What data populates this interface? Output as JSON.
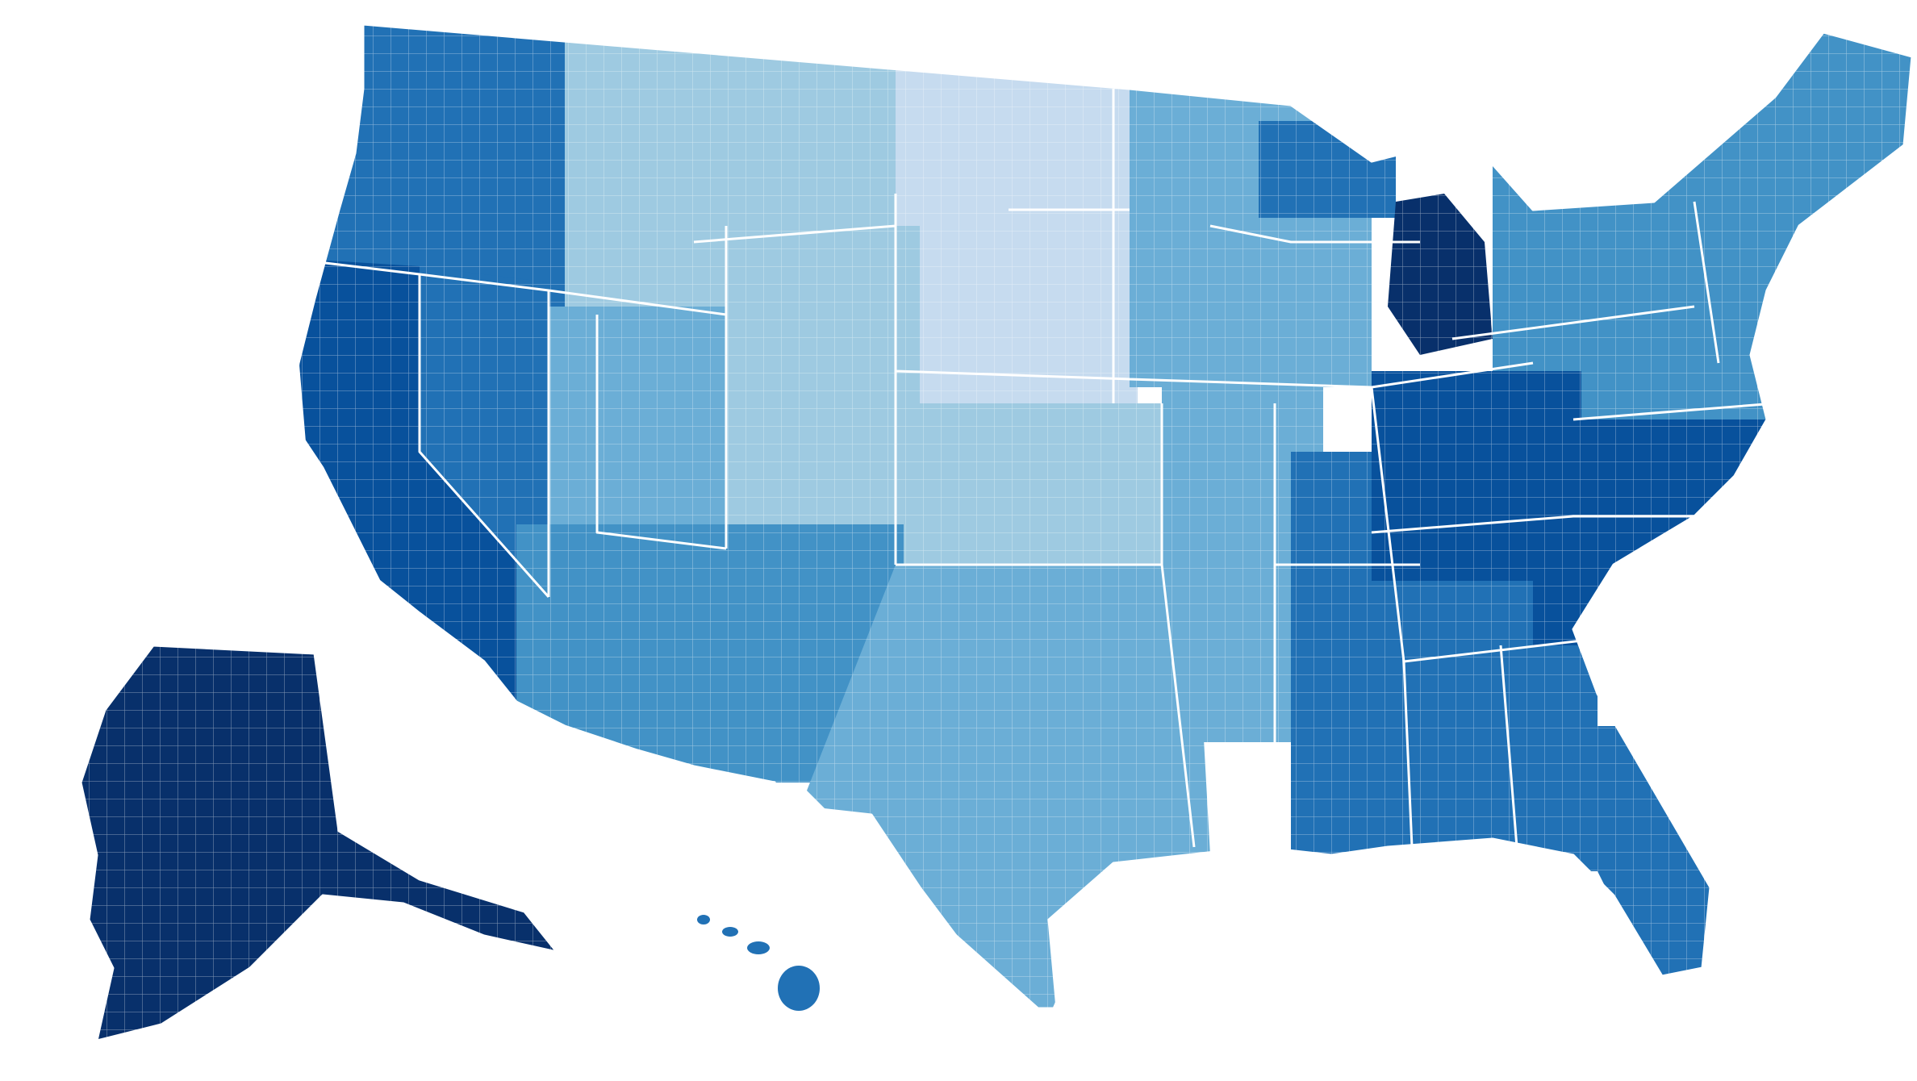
{
  "map": {
    "kind": "us-county-choropleth",
    "color_scale": [
      "#dbe6f6",
      "#c6dbef",
      "#9ecae1",
      "#6baed6",
      "#4292c6",
      "#2171b5",
      "#08519c",
      "#08306b"
    ],
    "background": "#ffffff",
    "border_color": "#ffffff",
    "regions": [
      {
        "id": "pacific-northwest",
        "level": 5
      },
      {
        "id": "northern-rockies",
        "level": 2
      },
      {
        "id": "northern-plains",
        "level": 1
      },
      {
        "id": "upper-midwest",
        "level": 3
      },
      {
        "id": "great-lakes",
        "level": 5
      },
      {
        "id": "michigan-lower",
        "level": 7
      },
      {
        "id": "northeast",
        "level": 4
      },
      {
        "id": "new-england",
        "level": 4
      },
      {
        "id": "california",
        "level": 6
      },
      {
        "id": "nevada",
        "level": 5
      },
      {
        "id": "great-basin",
        "level": 3
      },
      {
        "id": "colorado-plateau",
        "level": 2
      },
      {
        "id": "southwest",
        "level": 4
      },
      {
        "id": "southern-plains",
        "level": 2
      },
      {
        "id": "texas",
        "level": 3
      },
      {
        "id": "ozarks",
        "level": 3
      },
      {
        "id": "mississippi-delta",
        "level": 5
      },
      {
        "id": "appalachia",
        "level": 6
      },
      {
        "id": "southeast",
        "level": 5
      },
      {
        "id": "carolinas",
        "level": 6
      },
      {
        "id": "florida",
        "level": 5
      },
      {
        "id": "alaska",
        "level": 7
      },
      {
        "id": "hawaii",
        "level": 5
      }
    ]
  }
}
